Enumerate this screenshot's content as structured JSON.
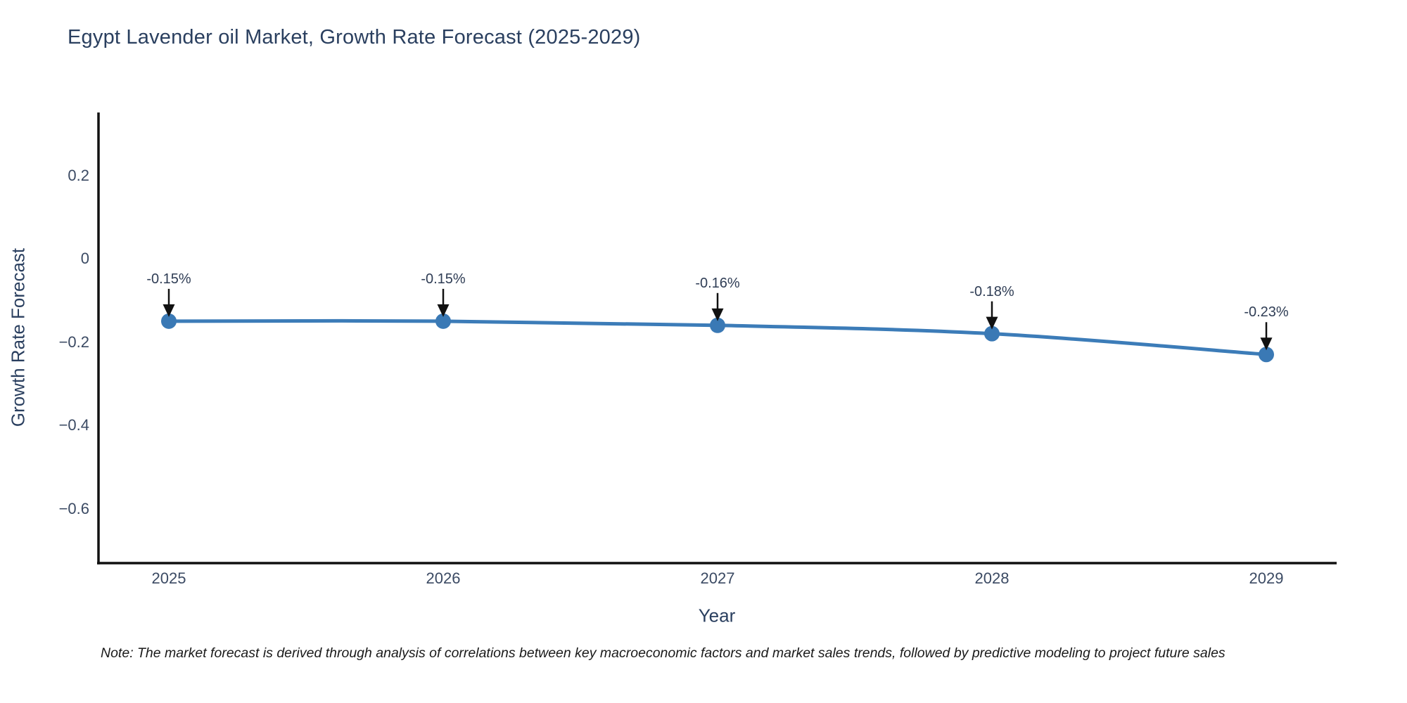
{
  "title": "Egypt Lavender oil Market, Growth Rate Forecast (2025-2029)",
  "note": "Note: The market forecast is derived through analysis of correlations between key macroeconomic factors and market sales trends, followed by predictive modeling to project future sales",
  "chart_data": {
    "type": "line",
    "title": "Egypt Lavender oil Market, Growth Rate Forecast (2025-2029)",
    "xlabel": "Year",
    "ylabel": "Growth Rate Forecast",
    "categories": [
      "2025",
      "2026",
      "2027",
      "2028",
      "2029"
    ],
    "x": [
      2025,
      2026,
      2027,
      2028,
      2029
    ],
    "values": [
      -0.15,
      -0.15,
      -0.16,
      -0.18,
      -0.23
    ],
    "point_labels": [
      "-0.15%",
      "-0.15%",
      "-0.16%",
      "-0.18%",
      "-0.23%"
    ],
    "yticks": [
      0.2,
      0,
      -0.2,
      -0.4,
      -0.6
    ],
    "ytick_labels": [
      "0.2",
      "0",
      "−0.2",
      "−0.4",
      "−0.6"
    ],
    "ylim": [
      -0.73,
      0.35
    ],
    "grid": false,
    "legend": "none",
    "line_color": "#3c7cb8",
    "marker_color": "#3a79b5",
    "axis_color": "#111111",
    "arrow_color": "#111111",
    "title_color": "#2a3f5f",
    "tick_color": "#3b4a63"
  }
}
